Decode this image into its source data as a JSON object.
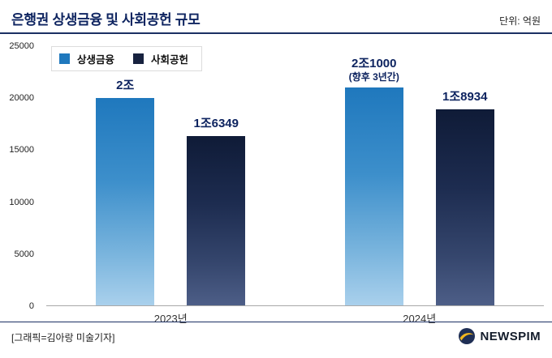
{
  "header": {
    "title": "은행권 상생금융 및 사회공헌 규모",
    "unit_label": "단위: 억원"
  },
  "chart_data": {
    "type": "bar",
    "title": "은행권 상생금융 및 사회공헌 규모",
    "unit": "억원",
    "categories": [
      "2023년",
      "2024년"
    ],
    "series": [
      {
        "name": "상생금융",
        "values": [
          20000,
          21000
        ],
        "value_labels": [
          "2조",
          "2조1000"
        ],
        "color_top": "#1f78bd",
        "color_bottom": "#a9d0ec"
      },
      {
        "name": "사회공헌",
        "values": [
          16349,
          18934
        ],
        "value_labels": [
          "1조6349",
          "1조8934"
        ],
        "color_top": "#0f1b37",
        "color_bottom": "#4d5e87"
      }
    ],
    "annotation": {
      "series": "상생금융",
      "category": "2024년",
      "text": "(향후 3년간)"
    },
    "ylim": [
      0,
      25000
    ],
    "yticks": [
      "25000",
      "20000",
      "15000",
      "10000",
      "5000",
      "0"
    ],
    "grid": false,
    "legend_position": "top-left"
  },
  "footer": {
    "credit": "[그래픽=김아랑 미술기자]",
    "brand": "NEWSPIM"
  }
}
